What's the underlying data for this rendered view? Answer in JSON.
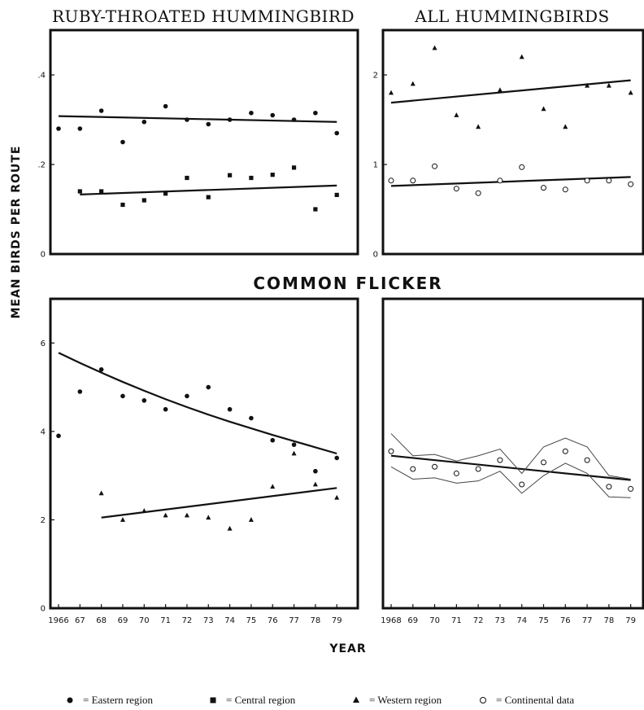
{
  "chart_data": [
    {
      "type": "scatter",
      "title": "RUBY-THROATED HUMMINGBIRD",
      "ylabel": "MEAN BIRDS PER ROUTE",
      "xlim": [
        1966,
        1979.6
      ],
      "ylim": [
        0,
        0.5
      ],
      "yticks": [
        0,
        0.2,
        0.4
      ],
      "ytick_labels": [
        "0",
        ".2",
        ".4"
      ],
      "series": [
        {
          "name": "Eastern region",
          "marker": "circle",
          "x": [
            1966,
            1967,
            1968,
            1969,
            1970,
            1971,
            1972,
            1973,
            1974,
            1975,
            1976,
            1977,
            1978,
            1979
          ],
          "y": [
            0.28,
            0.28,
            0.32,
            0.25,
            0.295,
            0.33,
            0.3,
            0.29,
            0.3,
            0.315,
            0.31,
            0.3,
            0.315,
            0.27
          ],
          "trend": [
            [
              1966,
              0.308
            ],
            [
              1979,
              0.295
            ]
          ]
        },
        {
          "name": "Central region",
          "marker": "square",
          "x": [
            1967,
            1968,
            1969,
            1970,
            1971,
            1972,
            1973,
            1974,
            1975,
            1976,
            1977,
            1978,
            1979
          ],
          "y": [
            0.14,
            0.14,
            0.11,
            0.12,
            0.135,
            0.17,
            0.127,
            0.176,
            0.17,
            0.177,
            0.193,
            0.1,
            0.132
          ],
          "trend": [
            [
              1967,
              0.133
            ],
            [
              1979,
              0.153
            ]
          ]
        }
      ]
    },
    {
      "type": "scatter",
      "title": "ALL HUMMINGBIRDS",
      "xlim": [
        1968,
        1979.2
      ],
      "ylim": [
        0,
        2.5
      ],
      "yticks": [
        0,
        1,
        2
      ],
      "ytick_labels": [
        "0",
        "1",
        "2"
      ],
      "series": [
        {
          "name": "Western region",
          "marker": "triangle",
          "x": [
            1968,
            1969,
            1970,
            1971,
            1972,
            1973,
            1974,
            1975,
            1976,
            1977,
            1978,
            1979
          ],
          "y": [
            1.8,
            1.9,
            2.3,
            1.55,
            1.42,
            1.83,
            2.2,
            1.62,
            1.42,
            1.88,
            1.88,
            1.8
          ],
          "trend": [
            [
              1968,
              1.69
            ],
            [
              1979,
              1.94
            ]
          ]
        },
        {
          "name": "Continental data",
          "marker": "open-circle",
          "x": [
            1968,
            1969,
            1970,
            1971,
            1972,
            1973,
            1974,
            1975,
            1976,
            1977,
            1978,
            1979
          ],
          "y": [
            0.82,
            0.82,
            0.98,
            0.73,
            0.68,
            0.82,
            0.97,
            0.74,
            0.72,
            0.82,
            0.82,
            0.78
          ],
          "trend": [
            [
              1968,
              0.76
            ],
            [
              1979,
              0.86
            ]
          ]
        }
      ]
    },
    {
      "type": "scatter",
      "title": "COMMON FLICKER",
      "xlabel": "YEAR",
      "ylabel": "MEAN BIRDS PER ROUTE",
      "xlim": [
        1966,
        1979.6
      ],
      "ylim": [
        0,
        7
      ],
      "yticks": [
        0,
        2,
        4,
        6
      ],
      "ytick_labels": [
        "0",
        "2",
        "4",
        "6"
      ],
      "xticks": [
        1966,
        1967,
        1968,
        1969,
        1970,
        1971,
        1972,
        1973,
        1974,
        1975,
        1976,
        1977,
        1978,
        1979
      ],
      "xtick_labels": [
        "1966",
        "67",
        "68",
        "69",
        "70",
        "71",
        "72",
        "73",
        "74",
        "75",
        "76",
        "77",
        "78",
        "79"
      ],
      "series": [
        {
          "name": "Eastern region",
          "marker": "circle",
          "x": [
            1966,
            1967,
            1968,
            1969,
            1970,
            1971,
            1972,
            1973,
            1974,
            1975,
            1976,
            1977,
            1978,
            1979
          ],
          "y": [
            3.9,
            4.9,
            5.4,
            4.8,
            4.7,
            4.5,
            4.8,
            5.0,
            4.5,
            4.3,
            3.8,
            3.7,
            3.1,
            3.4
          ],
          "trend": [
            [
              1966,
              5.78
            ],
            [
              1967,
              5.55
            ],
            [
              1968,
              5.33
            ],
            [
              1969,
              5.12
            ],
            [
              1970,
              4.92
            ],
            [
              1971,
              4.73
            ],
            [
              1972,
              4.55
            ],
            [
              1973,
              4.38
            ],
            [
              1974,
              4.22
            ],
            [
              1975,
              4.07
            ],
            [
              1976,
              3.92
            ],
            [
              1977,
              3.78
            ],
            [
              1978,
              3.64
            ],
            [
              1979,
              3.5
            ]
          ]
        },
        {
          "name": "Western region",
          "marker": "triangle",
          "x": [
            1968,
            1969,
            1970,
            1971,
            1972,
            1973,
            1974,
            1975,
            1976,
            1977,
            1978,
            1979
          ],
          "y": [
            2.6,
            2.0,
            2.2,
            2.1,
            2.1,
            2.05,
            1.8,
            2.0,
            2.75,
            3.5,
            2.8,
            2.5
          ],
          "trend": [
            [
              1968,
              2.05
            ],
            [
              1979,
              2.72
            ]
          ]
        }
      ]
    },
    {
      "type": "line",
      "xlim": [
        1968,
        1979.2
      ],
      "ylim": [
        0,
        7
      ],
      "xticks": [
        1968,
        1969,
        1970,
        1971,
        1972,
        1973,
        1974,
        1975,
        1976,
        1977,
        1978,
        1979
      ],
      "xtick_labels": [
        "1968",
        "69",
        "70",
        "71",
        "72",
        "73",
        "74",
        "75",
        "76",
        "77",
        "78",
        "79"
      ],
      "series": [
        {
          "name": "Continental data",
          "marker": "open-circle",
          "x": [
            1968,
            1969,
            1970,
            1971,
            1972,
            1973,
            1974,
            1975,
            1976,
            1977,
            1978,
            1979
          ],
          "y": [
            3.55,
            3.15,
            3.2,
            3.05,
            3.15,
            3.35,
            2.8,
            3.3,
            3.55,
            3.35,
            2.75,
            2.7
          ],
          "trend": [
            [
              1968,
              3.45
            ],
            [
              1979,
              2.9
            ]
          ]
        },
        {
          "name": "upper band",
          "line_only": true,
          "x": [
            1968,
            1969,
            1970,
            1971,
            1972,
            1973,
            1974,
            1975,
            1976,
            1977,
            1978,
            1979
          ],
          "y": [
            3.95,
            3.45,
            3.48,
            3.33,
            3.45,
            3.6,
            3.05,
            3.65,
            3.85,
            3.65,
            3.0,
            2.92
          ]
        },
        {
          "name": "lower band",
          "line_only": true,
          "x": [
            1968,
            1969,
            1970,
            1971,
            1972,
            1973,
            1974,
            1975,
            1976,
            1977,
            1978,
            1979
          ],
          "y": [
            3.2,
            2.92,
            2.95,
            2.83,
            2.88,
            3.1,
            2.6,
            3.0,
            3.28,
            3.05,
            2.52,
            2.5
          ]
        }
      ]
    }
  ],
  "legend": [
    {
      "marker": "circle",
      "text": "= Eastern region"
    },
    {
      "marker": "square",
      "text": "= Central region"
    },
    {
      "marker": "triangle",
      "text": "= Western region"
    },
    {
      "marker": "open-circle",
      "text": "= Continental data"
    }
  ]
}
